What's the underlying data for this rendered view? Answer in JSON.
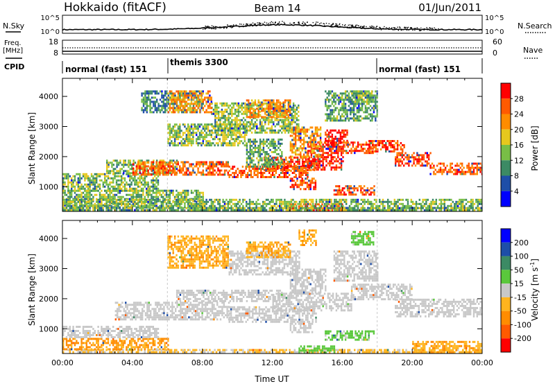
{
  "header": {
    "station": "Hokkaido (fitACF)",
    "beam": "Beam 14",
    "date": "01/Jun/2011"
  },
  "strips": {
    "nsky_label": "N.Sky",
    "nsearch_label": "N.Search",
    "count_ticks": [
      "10^5",
      "10^0"
    ],
    "freq_label": "Freq.",
    "freq_unit": "[MHz]",
    "freq_ticks": [
      "18",
      "8"
    ],
    "nave_label": "Nave",
    "nave_ticks": [
      "60",
      "0"
    ],
    "cpid_label": "CPID",
    "cpid_segments": [
      {
        "label": "normal (fast) 151",
        "start_hour": 0,
        "end_hour": 6
      },
      {
        "label": "themis 3300",
        "start_hour": 6,
        "end_hour": 18
      },
      {
        "label": "normal (fast) 151",
        "start_hour": 18,
        "end_hour": 24
      }
    ]
  },
  "chart_data": [
    {
      "type": "heatmap",
      "quantity": "power",
      "xlabel": "",
      "ylabel": "Slant Range [km]",
      "xlim": [
        0,
        24
      ],
      "ylim": [
        180,
        4600
      ],
      "yticks": [
        "1000",
        "2000",
        "3000",
        "4000"
      ],
      "colorbar_label": "Power [dB]",
      "colorbar_ticks": [
        "28",
        "24",
        "20",
        "16",
        "12",
        "8",
        "4"
      ],
      "colorbar_colors": [
        "#0000ff",
        "#1e4ea8",
        "#3c8a64",
        "#78be46",
        "#e6c81e",
        "#ff8c00",
        "#ff5a00",
        "#ff0000"
      ],
      "regions": [
        {
          "t0": 0.0,
          "t1": 24.0,
          "r0": 200,
          "r1": 330,
          "value": 10
        },
        {
          "t0": 0.0,
          "t1": 8.0,
          "r0": 330,
          "r1": 900,
          "value": 13
        },
        {
          "t0": 0.0,
          "t1": 5.5,
          "r0": 850,
          "r1": 1450,
          "value": 14
        },
        {
          "t0": 2.5,
          "t1": 6.5,
          "r0": 1450,
          "r1": 1900,
          "value": 15
        },
        {
          "t0": 4.0,
          "t1": 9.5,
          "r0": 1400,
          "r1": 1850,
          "value": 25
        },
        {
          "t0": 9.5,
          "t1": 14.0,
          "r0": 1300,
          "r1": 1700,
          "value": 26
        },
        {
          "t0": 11.5,
          "t1": 14.5,
          "r0": 1550,
          "r1": 2000,
          "value": 26
        },
        {
          "t0": 14.0,
          "t1": 16.0,
          "r0": 1550,
          "r1": 2500,
          "value": 30
        },
        {
          "t0": 15.0,
          "t1": 16.3,
          "r0": 2400,
          "r1": 2900,
          "value": 30
        },
        {
          "t0": 16.0,
          "t1": 17.8,
          "r0": 2100,
          "r1": 2500,
          "value": 27
        },
        {
          "t0": 17.5,
          "t1": 19.5,
          "r0": 2150,
          "r1": 2550,
          "value": 27
        },
        {
          "t0": 19.0,
          "t1": 21.0,
          "r0": 1700,
          "r1": 2150,
          "value": 27
        },
        {
          "t0": 21.0,
          "t1": 24.0,
          "r0": 1450,
          "r1": 1800,
          "value": 25
        },
        {
          "t0": 13.0,
          "t1": 14.5,
          "r0": 900,
          "r1": 1300,
          "value": 27
        },
        {
          "t0": 15.5,
          "t1": 17.8,
          "r0": 750,
          "r1": 1050,
          "value": 26
        },
        {
          "t0": 13.0,
          "t1": 16.0,
          "r0": 180,
          "r1": 450,
          "value": 26
        },
        {
          "t0": 6.0,
          "t1": 10.5,
          "r0": 2400,
          "r1": 3100,
          "value": 15
        },
        {
          "t0": 8.5,
          "t1": 13.5,
          "r0": 2800,
          "r1": 3800,
          "value": 15
        },
        {
          "t0": 10.5,
          "t1": 13.0,
          "r0": 3300,
          "r1": 3900,
          "value": 22
        },
        {
          "t0": 4.5,
          "t1": 8.0,
          "r0": 3500,
          "r1": 4200,
          "value": 9
        },
        {
          "t0": 13.0,
          "t1": 14.8,
          "r0": 2000,
          "r1": 3000,
          "value": 21
        },
        {
          "t0": 15.0,
          "t1": 18.0,
          "r0": 3200,
          "r1": 4200,
          "value": 12
        },
        {
          "t0": 6.0,
          "t1": 8.5,
          "r0": 3500,
          "r1": 4200,
          "value": 22
        },
        {
          "t0": 16.5,
          "t1": 17.8,
          "r0": 3850,
          "r1": 4200,
          "value": 14
        },
        {
          "t0": 10.5,
          "t1": 12.5,
          "r0": 1700,
          "r1": 2600,
          "value": 12
        },
        {
          "t0": 0.0,
          "t1": 24.0,
          "r0": 180,
          "r1": 600,
          "value": 14
        }
      ]
    },
    {
      "type": "heatmap",
      "quantity": "velocity",
      "xlabel": "Time UT",
      "ylabel": "Slant Range [km]",
      "xlim": [
        0,
        24
      ],
      "ylim": [
        180,
        4600
      ],
      "xticks": [
        "00:00",
        "04:00",
        "08:00",
        "12:00",
        "16:00",
        "20:00",
        "00:00"
      ],
      "yticks": [
        "1000",
        "2000",
        "3000",
        "4000"
      ],
      "colorbar_label": "Velocity [m s^-1]",
      "colorbar_ticks": [
        "200",
        "100",
        "50",
        "15",
        "-15",
        "-50",
        "-100",
        "-200"
      ],
      "colorbar_colors": [
        "#ff0000",
        "#ff5a00",
        "#ff8c00",
        "#ffb41e",
        "#c8c8c8",
        "#5ac83c",
        "#3c8a64",
        "#1e4ea8",
        "#0000ff"
      ],
      "regions": [
        {
          "t0": 0.0,
          "t1": 24.0,
          "r0": 200,
          "r1": 330,
          "value": -20
        },
        {
          "t0": 0.0,
          "t1": 6.0,
          "r0": 330,
          "r1": 700,
          "value": -55
        },
        {
          "t0": 0.0,
          "t1": 5.5,
          "r0": 700,
          "r1": 1100,
          "value": 0
        },
        {
          "t0": 3.0,
          "t1": 9.5,
          "r0": 1300,
          "r1": 1900,
          "value": 0
        },
        {
          "t0": 9.5,
          "t1": 14.5,
          "r0": 1200,
          "r1": 1750,
          "value": 0
        },
        {
          "t0": 12.0,
          "t1": 16.5,
          "r0": 1600,
          "r1": 2200,
          "value": 0
        },
        {
          "t0": 16.5,
          "t1": 20.0,
          "r0": 2000,
          "r1": 2500,
          "value": 0
        },
        {
          "t0": 19.0,
          "t1": 24.0,
          "r0": 1400,
          "r1": 2000,
          "value": 0
        },
        {
          "t0": 13.0,
          "t1": 14.3,
          "r0": 900,
          "r1": 1200,
          "value": 0
        },
        {
          "t0": 15.0,
          "t1": 17.8,
          "r0": 650,
          "r1": 950,
          "value": 25
        },
        {
          "t0": 13.5,
          "t1": 15.5,
          "r0": 200,
          "r1": 450,
          "value": 25
        },
        {
          "t0": 6.0,
          "t1": 9.5,
          "r0": 3000,
          "r1": 4100,
          "value": -45
        },
        {
          "t0": 9.5,
          "t1": 13.5,
          "r0": 2800,
          "r1": 3600,
          "value": 0
        },
        {
          "t0": 10.5,
          "t1": 13.0,
          "r0": 3400,
          "r1": 3900,
          "value": -45
        },
        {
          "t0": 13.5,
          "t1": 14.5,
          "r0": 3800,
          "r1": 4300,
          "value": -45
        },
        {
          "t0": 13.0,
          "t1": 15.0,
          "r0": 2200,
          "r1": 3000,
          "value": 0
        },
        {
          "t0": 15.5,
          "t1": 18.0,
          "r0": 2600,
          "r1": 3600,
          "value": 0
        },
        {
          "t0": 16.5,
          "t1": 17.8,
          "r0": 3800,
          "r1": 4250,
          "value": 25
        },
        {
          "t0": 20.0,
          "t1": 24.0,
          "r0": 200,
          "r1": 600,
          "value": -45
        },
        {
          "t0": 6.5,
          "t1": 12.5,
          "r0": 1900,
          "r1": 2300,
          "value": 0
        }
      ]
    }
  ]
}
